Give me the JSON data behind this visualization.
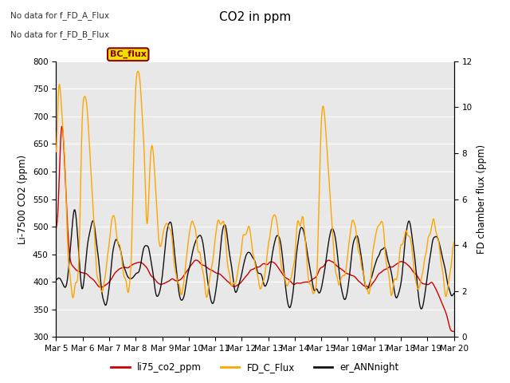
{
  "title": "CO2 in ppm",
  "ylabel_left": "Li-7500 CO2 (ppm)",
  "ylabel_right": "FD chamber flux (ppm)",
  "ylim_left": [
    300,
    800
  ],
  "ylim_right": [
    0,
    12
  ],
  "yticks_left": [
    300,
    350,
    400,
    450,
    500,
    550,
    600,
    650,
    700,
    750,
    800
  ],
  "yticks_right": [
    0,
    2,
    4,
    6,
    8,
    10,
    12
  ],
  "xticklabels": [
    "Mar 5",
    "Mar 6",
    "Mar 7",
    "Mar 8",
    "Mar 9",
    "Mar 10",
    "Mar 11",
    "Mar 12",
    "Mar 13",
    "Mar 14",
    "Mar 15",
    "Mar 16",
    "Mar 17",
    "Mar 18",
    "Mar 19",
    "Mar 20"
  ],
  "annotation1": "No data for f_FD_A_Flux",
  "annotation2": "No data for f_FD_B_Flux",
  "bc_label": "BC_flux",
  "legend_labels": [
    "li75_co2_ppm",
    "FD_C_Flux",
    "er_ANNnight"
  ],
  "line_colors": [
    "#cc0000",
    "#ffa500",
    "#111111"
  ],
  "background_color": "#e8e8e8",
  "fig_background": "#ffffff",
  "n_points": 720,
  "seed": 42
}
